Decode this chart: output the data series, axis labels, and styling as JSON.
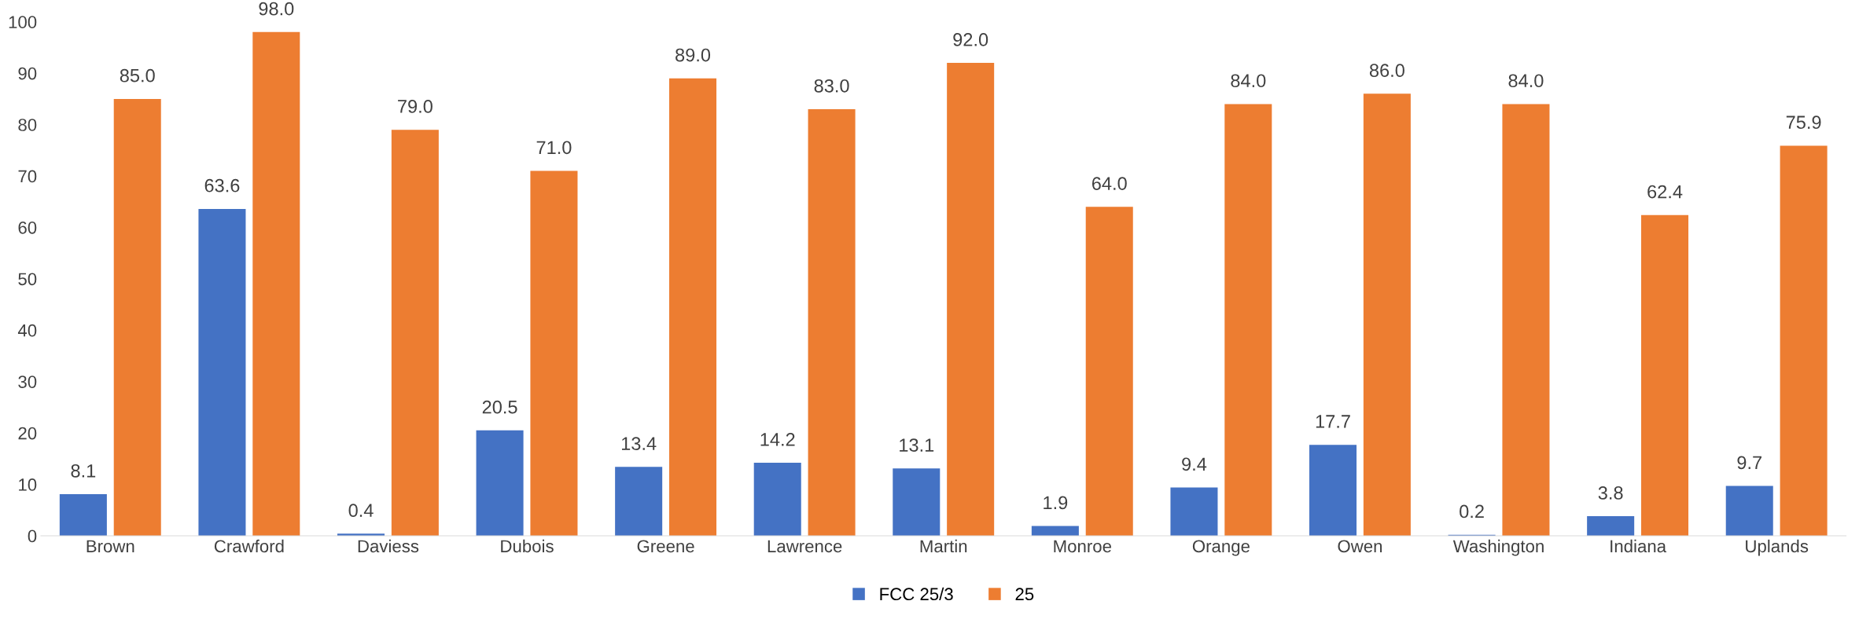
{
  "chart_data": {
    "type": "bar",
    "categories": [
      "Brown",
      "Crawford",
      "Daviess",
      "Dubois",
      "Greene",
      "Lawrence",
      "Martin",
      "Monroe",
      "Orange",
      "Owen",
      "Washington",
      "Indiana",
      "Uplands"
    ],
    "series": [
      {
        "name": "FCC 25/3",
        "color": "#4472c4",
        "values": [
          8.1,
          63.6,
          0.4,
          20.5,
          13.4,
          14.2,
          13.1,
          1.9,
          9.4,
          17.7,
          0.2,
          3.8,
          9.7
        ],
        "value_labels": [
          "8.1",
          "63.6",
          "0.4",
          "20.5",
          "13.4",
          "14.2",
          "13.1",
          "1.9",
          "9.4",
          "17.7",
          "0.2",
          "3.8",
          "9.7"
        ]
      },
      {
        "name": "25",
        "color": "#ed7d31",
        "values": [
          85.0,
          98.0,
          79.0,
          71.0,
          89.0,
          83.0,
          92.0,
          64.0,
          84.0,
          86.0,
          84.0,
          62.4,
          75.9
        ],
        "value_labels": [
          "85.0",
          "98.0",
          "79.0",
          "71.0",
          "89.0",
          "83.0",
          "92.0",
          "64.0",
          "84.0",
          "86.0",
          "84.0",
          "62.4",
          "75.9"
        ]
      }
    ],
    "ylim": [
      0,
      100
    ],
    "yticks": [
      0,
      10,
      20,
      30,
      40,
      50,
      60,
      70,
      80,
      90,
      100
    ],
    "grid": false,
    "legend": "bottom"
  }
}
